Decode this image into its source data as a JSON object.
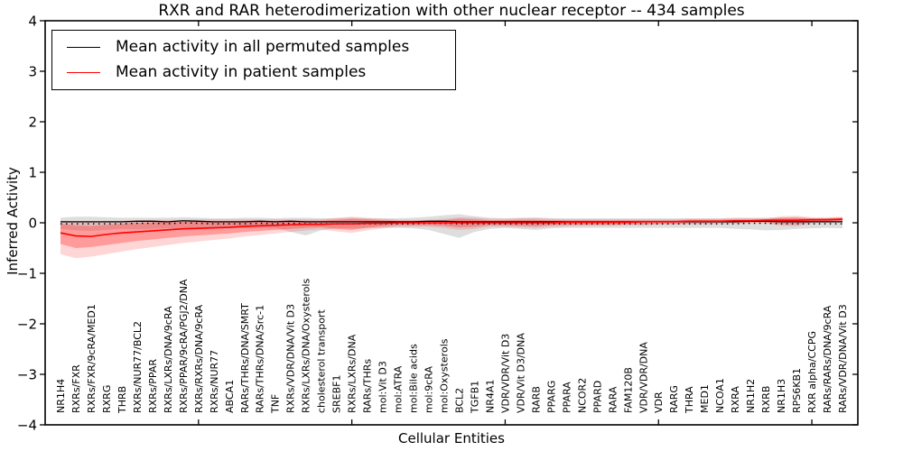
{
  "title": "RXR and RAR heterodimerization with other nuclear receptor -- 434 samples",
  "axes": {
    "ylabel": "Inferred Activity",
    "xlabel": "Cellular Entities"
  },
  "legend": {
    "items": [
      {
        "label": "Mean activity in all permuted samples",
        "color": "#000000"
      },
      {
        "label": "Mean activity in patient samples",
        "color": "#ff0000"
      }
    ]
  },
  "chart_data": {
    "type": "line",
    "title": "RXR and RAR heterodimerization with other nuclear receptor -- 434 samples",
    "xlabel": "Cellular Entities",
    "ylabel": "Inferred Activity",
    "ylim": [
      -4,
      4
    ],
    "yticks": [
      4,
      3,
      2,
      1,
      0,
      -1,
      -2,
      -3,
      -4
    ],
    "grid": false,
    "legend_position": "upper left",
    "colors": {
      "permuted": "#000000",
      "patient": "#ff0000",
      "gray_band": "rgba(0,0,0,0.13)",
      "red_outer_band": "rgba(255,70,70,0.22)",
      "red_inner_band": "rgba(255,30,30,0.32)"
    },
    "categories": [
      "NR1H4",
      "RXRs/FXR",
      "RXRs/FXR/9cRA/MED1",
      "RXRG",
      "THRB",
      "RXRs/NUR77/BCL2",
      "RXRs/PPAR",
      "RXRs/LXRs/DNA/9cRA",
      "RXRs/PPAR/9cRA/PGJ2/DNA",
      "RXRs/RXRs/DNA/9cRA",
      "RXRs/NUR77",
      "ABCA1",
      "RARs/THRs/DNA/SMRT",
      "RARs/THRs/DNA/Src-1",
      "TNF",
      "RXRs/VDR/DNA/Vit D3",
      "RXRs/LXRs/DNA/Oxysterols",
      "cholesterol transport",
      "SREBF1",
      "RXRs/LXRs/DNA",
      "RARs/THRs",
      "mol:Vit D3",
      "mol:ATRA",
      "mol:Bile acids",
      "mol:9cRA",
      "mol:Oxysterols",
      "BCL2",
      "TGFB1",
      "NR4A1",
      "VDR/VDR/Vit D3",
      "VDR/Vit D3/DNA",
      "RARB",
      "PPARG",
      "PPARA",
      "NCOR2",
      "PPARD",
      "RARA",
      "FAM120B",
      "VDR/VDR/DNA",
      "VDR",
      "RARG",
      "THRA",
      "MED1",
      "NCOA1",
      "RXRA",
      "NR1H2",
      "RXRB",
      "NR1H3",
      "RPS6KB1",
      "RXR alpha/CCPG",
      "RARs/RARs/DNA/9cRA",
      "RARs/VDR/DNA/Vit D3"
    ],
    "series": [
      {
        "name": "Mean activity in all permuted samples",
        "values": [
          0.02,
          0.02,
          0.02,
          0.02,
          0.02,
          0.03,
          0.03,
          0.02,
          0.04,
          0.03,
          0.02,
          0.02,
          0.02,
          0.03,
          0.02,
          0.03,
          0.02,
          0.02,
          0.02,
          0.02,
          0.02,
          0.02,
          0.02,
          0.02,
          0.03,
          0.03,
          0.02,
          0.02,
          0.02,
          0.02,
          0.02,
          0.02,
          0.02,
          0.02,
          0.02,
          0.02,
          0.02,
          0.02,
          0.02,
          0.02,
          0.02,
          0.02,
          0.02,
          0.02,
          0.02,
          0.03,
          0.03,
          0.02,
          0.02,
          0.02,
          0.02,
          0.02
        ],
        "band_hi": [
          0.1,
          0.12,
          0.12,
          0.11,
          0.1,
          0.1,
          0.1,
          0.1,
          0.11,
          0.1,
          0.09,
          0.09,
          0.1,
          0.1,
          0.09,
          0.1,
          0.1,
          0.09,
          0.09,
          0.1,
          0.09,
          0.09,
          0.09,
          0.1,
          0.12,
          0.15,
          0.17,
          0.13,
          0.1,
          0.09,
          0.1,
          0.11,
          0.09,
          0.09,
          0.09,
          0.09,
          0.09,
          0.09,
          0.09,
          0.09,
          0.09,
          0.09,
          0.09,
          0.09,
          0.1,
          0.1,
          0.1,
          0.1,
          0.09,
          0.09,
          0.09,
          0.1
        ],
        "band_lo": [
          -0.12,
          -0.15,
          -0.16,
          -0.14,
          -0.12,
          -0.13,
          -0.12,
          -0.11,
          -0.12,
          -0.11,
          -0.1,
          -0.1,
          -0.11,
          -0.1,
          -0.1,
          -0.18,
          -0.25,
          -0.15,
          -0.11,
          -0.11,
          -0.1,
          -0.1,
          -0.1,
          -0.11,
          -0.14,
          -0.22,
          -0.3,
          -0.18,
          -0.12,
          -0.1,
          -0.12,
          -0.14,
          -0.11,
          -0.1,
          -0.1,
          -0.1,
          -0.1,
          -0.1,
          -0.1,
          -0.1,
          -0.1,
          -0.1,
          -0.1,
          -0.1,
          -0.12,
          -0.13,
          -0.15,
          -0.14,
          -0.12,
          -0.11,
          -0.1,
          -0.11
        ]
      },
      {
        "name": "Mean activity in patient samples",
        "values": [
          -0.2,
          -0.26,
          -0.27,
          -0.23,
          -0.2,
          -0.18,
          -0.16,
          -0.14,
          -0.12,
          -0.11,
          -0.1,
          -0.09,
          -0.07,
          -0.06,
          -0.05,
          -0.04,
          -0.03,
          -0.03,
          -0.02,
          -0.02,
          -0.01,
          -0.01,
          0.0,
          0.0,
          0.0,
          0.0,
          0.0,
          0.0,
          0.0,
          0.0,
          0.0,
          0.0,
          0.0,
          0.01,
          0.01,
          0.01,
          0.01,
          0.01,
          0.02,
          0.02,
          0.02,
          0.03,
          0.03,
          0.03,
          0.04,
          0.04,
          0.05,
          0.05,
          0.05,
          0.06,
          0.06,
          0.07
        ],
        "inner_band_hi": [
          -0.02,
          -0.05,
          -0.06,
          -0.04,
          -0.02,
          0.0,
          0.01,
          0.02,
          0.02,
          0.03,
          0.03,
          0.03,
          0.04,
          0.04,
          0.04,
          0.04,
          0.04,
          0.04,
          0.06,
          0.08,
          0.07,
          0.05,
          0.04,
          0.04,
          0.04,
          0.05,
          0.08,
          0.07,
          0.05,
          0.05,
          0.06,
          0.06,
          0.05,
          0.05,
          0.05,
          0.05,
          0.05,
          0.05,
          0.05,
          0.05,
          0.05,
          0.06,
          0.06,
          0.06,
          0.07,
          0.07,
          0.07,
          0.1,
          0.11,
          0.09,
          0.09,
          0.1
        ],
        "inner_band_lo": [
          -0.42,
          -0.5,
          -0.48,
          -0.44,
          -0.4,
          -0.36,
          -0.33,
          -0.3,
          -0.27,
          -0.25,
          -0.23,
          -0.21,
          -0.18,
          -0.16,
          -0.14,
          -0.12,
          -0.1,
          -0.09,
          -0.12,
          -0.14,
          -0.1,
          -0.07,
          -0.05,
          -0.05,
          -0.05,
          -0.06,
          -0.09,
          -0.08,
          -0.05,
          -0.05,
          -0.06,
          -0.07,
          -0.05,
          -0.04,
          -0.04,
          -0.04,
          -0.04,
          -0.03,
          -0.03,
          -0.02,
          -0.02,
          -0.01,
          -0.01,
          0.0,
          0.0,
          0.01,
          0.01,
          -0.02,
          -0.03,
          0.01,
          0.02,
          0.03
        ],
        "outer_band_hi": [
          0.04,
          0.02,
          0.02,
          0.03,
          0.04,
          0.05,
          0.06,
          0.06,
          0.06,
          0.07,
          0.07,
          0.07,
          0.07,
          0.07,
          0.07,
          0.07,
          0.07,
          0.07,
          0.1,
          0.12,
          0.1,
          0.08,
          0.06,
          0.06,
          0.06,
          0.08,
          0.11,
          0.1,
          0.08,
          0.08,
          0.09,
          0.09,
          0.08,
          0.07,
          0.07,
          0.07,
          0.07,
          0.07,
          0.07,
          0.07,
          0.07,
          0.08,
          0.08,
          0.08,
          0.09,
          0.09,
          0.09,
          0.13,
          0.14,
          0.11,
          0.11,
          0.12
        ],
        "outer_band_lo": [
          -0.62,
          -0.7,
          -0.67,
          -0.62,
          -0.57,
          -0.52,
          -0.48,
          -0.44,
          -0.4,
          -0.37,
          -0.34,
          -0.31,
          -0.27,
          -0.24,
          -0.21,
          -0.18,
          -0.15,
          -0.13,
          -0.17,
          -0.2,
          -0.15,
          -0.11,
          -0.08,
          -0.08,
          -0.08,
          -0.1,
          -0.14,
          -0.12,
          -0.08,
          -0.08,
          -0.09,
          -0.1,
          -0.08,
          -0.07,
          -0.06,
          -0.06,
          -0.06,
          -0.05,
          -0.05,
          -0.04,
          -0.04,
          -0.03,
          -0.03,
          -0.02,
          -0.02,
          -0.01,
          -0.01,
          -0.06,
          -0.07,
          -0.01,
          0.0,
          0.01
        ]
      }
    ]
  }
}
